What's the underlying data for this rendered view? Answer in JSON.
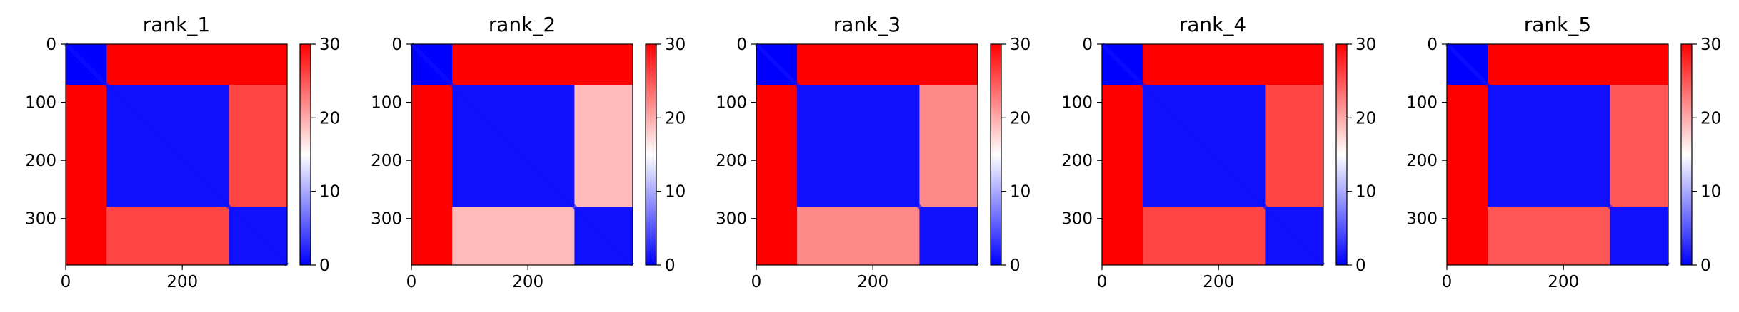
{
  "chart_data": [
    {
      "type": "heatmap",
      "title": "rank_1",
      "matrix_size": 380,
      "x_ticks": [
        0,
        200
      ],
      "y_ticks": [
        0,
        100,
        200,
        300
      ],
      "colorbar": {
        "range": [
          0,
          30
        ],
        "ticks": [
          0,
          10,
          20,
          30
        ],
        "colormap": [
          "#0000ff",
          "#ffffff",
          "#ff0000"
        ]
      },
      "domains": [
        [
          0,
          70
        ],
        [
          70,
          280
        ],
        [
          280,
          380
        ]
      ],
      "pattern": [
        [
          0,
          30,
          30
        ],
        [
          30,
          1,
          26
        ],
        [
          30,
          26,
          1
        ]
      ]
    },
    {
      "type": "heatmap",
      "title": "rank_2",
      "matrix_size": 380,
      "x_ticks": [
        0,
        200
      ],
      "y_ticks": [
        0,
        100,
        200,
        300
      ],
      "colorbar": {
        "range": [
          0,
          30
        ],
        "ticks": [
          0,
          10,
          20,
          30
        ],
        "colormap": [
          "#0000ff",
          "#ffffff",
          "#ff0000"
        ]
      },
      "domains": [
        [
          0,
          70
        ],
        [
          70,
          280
        ],
        [
          280,
          380
        ]
      ],
      "pattern": [
        [
          0,
          30,
          30
        ],
        [
          30,
          1,
          19
        ],
        [
          30,
          19,
          1
        ]
      ]
    },
    {
      "type": "heatmap",
      "title": "rank_3",
      "matrix_size": 380,
      "x_ticks": [
        0,
        200
      ],
      "y_ticks": [
        0,
        100,
        200,
        300
      ],
      "colorbar": {
        "range": [
          0,
          30
        ],
        "ticks": [
          0,
          10,
          20,
          30
        ],
        "colormap": [
          "#0000ff",
          "#ffffff",
          "#ff0000"
        ]
      },
      "domains": [
        [
          0,
          70
        ],
        [
          70,
          280
        ],
        [
          280,
          380
        ]
      ],
      "pattern": [
        [
          0,
          30,
          30
        ],
        [
          30,
          1,
          22
        ],
        [
          30,
          22,
          1
        ]
      ]
    },
    {
      "type": "heatmap",
      "title": "rank_4",
      "matrix_size": 380,
      "x_ticks": [
        0,
        200
      ],
      "y_ticks": [
        0,
        100,
        200,
        300
      ],
      "colorbar": {
        "range": [
          0,
          30
        ],
        "ticks": [
          0,
          10,
          20,
          30
        ],
        "colormap": [
          "#0000ff",
          "#ffffff",
          "#ff0000"
        ]
      },
      "domains": [
        [
          0,
          70
        ],
        [
          70,
          280
        ],
        [
          280,
          380
        ]
      ],
      "pattern": [
        [
          0,
          30,
          30
        ],
        [
          30,
          1,
          26
        ],
        [
          30,
          26,
          1
        ]
      ]
    },
    {
      "type": "heatmap",
      "title": "rank_5",
      "matrix_size": 380,
      "x_ticks": [
        0,
        200
      ],
      "y_ticks": [
        0,
        100,
        200,
        300
      ],
      "colorbar": {
        "range": [
          0,
          30
        ],
        "ticks": [
          0,
          10,
          20,
          30
        ],
        "colormap": [
          "#0000ff",
          "#ffffff",
          "#ff0000"
        ]
      },
      "domains": [
        [
          0,
          70
        ],
        [
          70,
          280
        ],
        [
          280,
          380
        ]
      ],
      "pattern": [
        [
          0,
          30,
          30
        ],
        [
          30,
          1,
          25
        ],
        [
          30,
          25,
          1
        ]
      ]
    }
  ]
}
